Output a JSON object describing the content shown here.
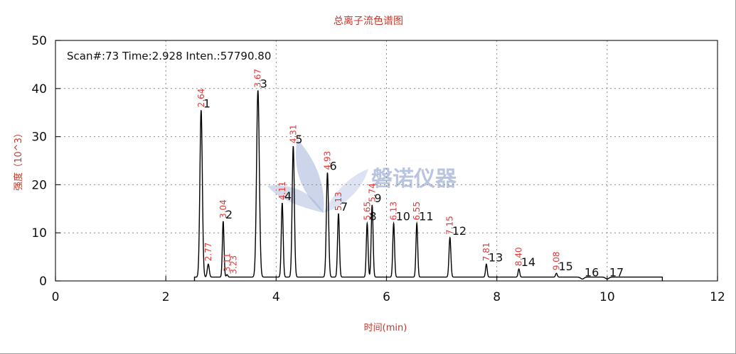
{
  "chart_data": {
    "type": "line",
    "title": "总离子流色谱图",
    "xlabel": "时间(min)",
    "ylabel": "强度（10^3）",
    "xlim": [
      0,
      12
    ],
    "ylim": [
      0,
      50
    ],
    "xticks": [
      0,
      2,
      4,
      6,
      8,
      10,
      12
    ],
    "yticks": [
      0,
      10,
      20,
      30,
      40,
      50
    ],
    "grid": true,
    "info_text": "Scan#:73  Time:2.928  Inten.:57790.80",
    "watermark": "磐诺仪器",
    "baseline": 0.8,
    "trace_range": [
      2.52,
      11.0
    ],
    "peaks": [
      {
        "num": "1",
        "rt": 2.64,
        "rt_label": "2.64",
        "height": 35.5,
        "width": 0.022
      },
      {
        "num": "",
        "rt": 2.77,
        "rt_label": "2.77",
        "height": 3.5,
        "width": 0.018
      },
      {
        "num": "2",
        "rt": 3.04,
        "rt_label": "3.04",
        "height": 12.4,
        "width": 0.015
      },
      {
        "num": "",
        "rt": 3.11,
        "rt_label": "3.11",
        "height": 1.3,
        "width": 0.015
      },
      {
        "num": "",
        "rt": 3.23,
        "rt_label": "3.23",
        "height": 0.8,
        "width": 0.015
      },
      {
        "num": "3",
        "rt": 3.67,
        "rt_label": "3.67",
        "height": 39.6,
        "width": 0.025
      },
      {
        "num": "4",
        "rt": 4.11,
        "rt_label": "4.11",
        "height": 16.2,
        "width": 0.017
      },
      {
        "num": "5",
        "rt": 4.31,
        "rt_label": "4.31",
        "height": 28.0,
        "width": 0.02
      },
      {
        "num": "6",
        "rt": 4.93,
        "rt_label": "4.93",
        "height": 22.5,
        "width": 0.02
      },
      {
        "num": "7",
        "rt": 5.13,
        "rt_label": "5.13",
        "height": 14.0,
        "width": 0.017
      },
      {
        "num": "8",
        "rt": 5.65,
        "rt_label": "5.65",
        "height": 12.0,
        "width": 0.016
      },
      {
        "num": "9",
        "rt": 5.74,
        "rt_label": "5.74",
        "height": 15.8,
        "width": 0.017
      },
      {
        "num": "10",
        "rt": 6.13,
        "rt_label": "6.13",
        "height": 12.0,
        "width": 0.016
      },
      {
        "num": "11",
        "rt": 6.55,
        "rt_label": "6.55",
        "height": 12.0,
        "width": 0.016
      },
      {
        "num": "12",
        "rt": 7.15,
        "rt_label": "7.15",
        "height": 9.0,
        "width": 0.017
      },
      {
        "num": "13",
        "rt": 7.81,
        "rt_label": "7.81",
        "height": 3.5,
        "width": 0.015
      },
      {
        "num": "14",
        "rt": 8.4,
        "rt_label": "8.40",
        "height": 2.5,
        "width": 0.015
      },
      {
        "num": "15",
        "rt": 9.08,
        "rt_label": "9.08",
        "height": 1.6,
        "width": 0.015
      },
      {
        "num": "16",
        "rt": 9.55,
        "rt_label": "",
        "height": 0.4,
        "width": 0.03
      },
      {
        "num": "17",
        "rt": 10.0,
        "rt_label": "",
        "height": 0.4,
        "width": 0.03
      }
    ]
  }
}
